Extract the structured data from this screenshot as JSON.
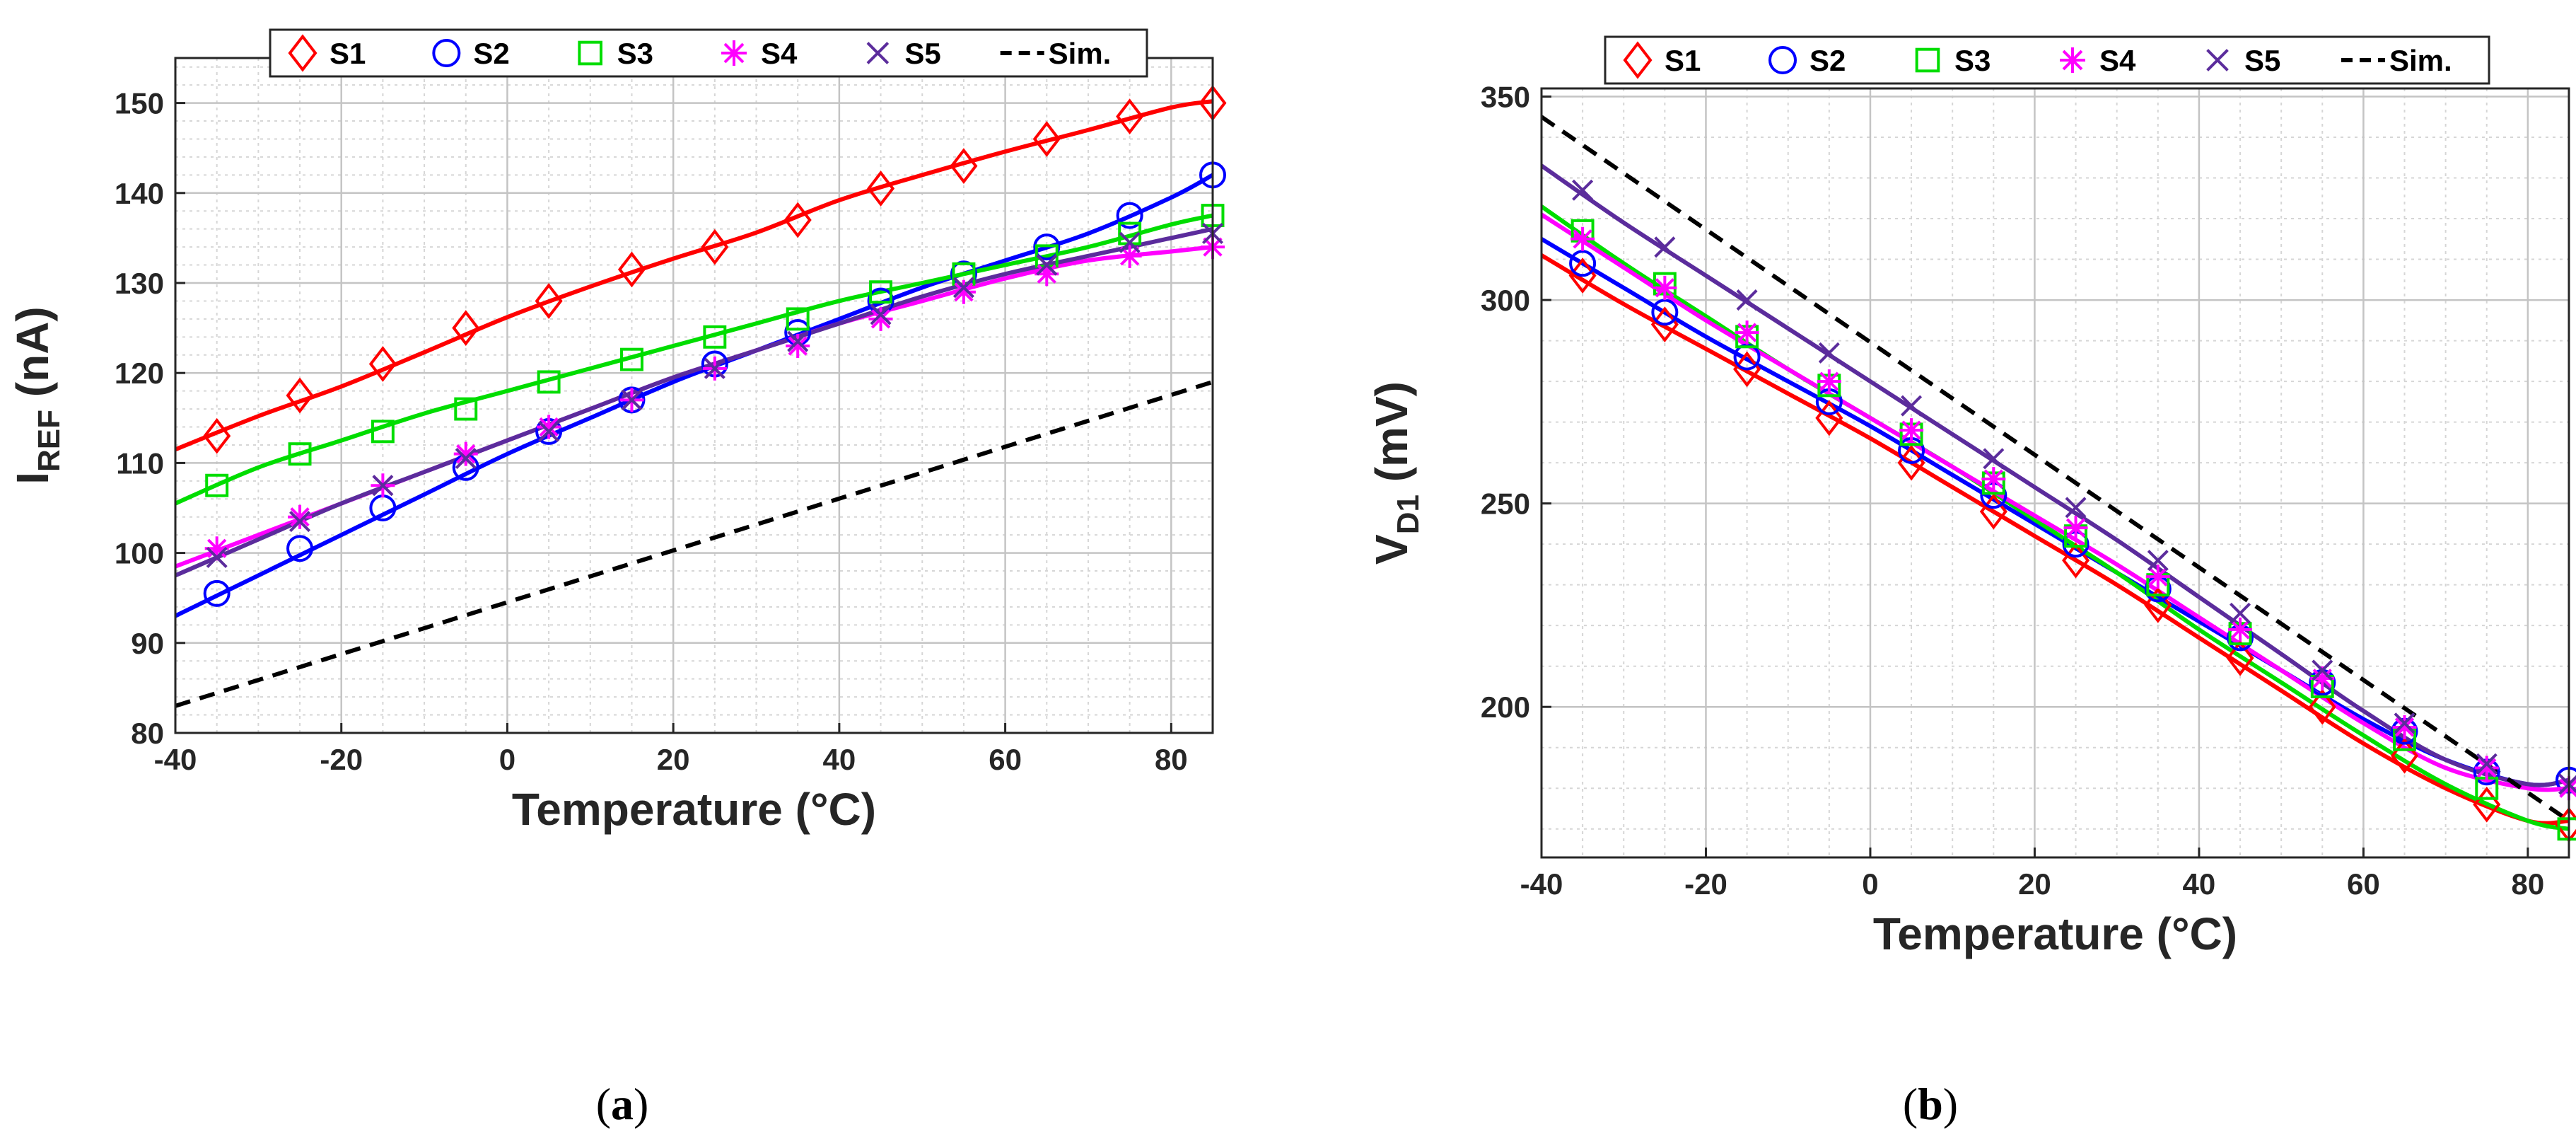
{
  "figure": {
    "caption_a": "a",
    "caption_b": "b"
  },
  "legend": {
    "s1": "S1",
    "s2": "S2",
    "s3": "S3",
    "s4": "S4",
    "s5": "S5",
    "sim": "Sim."
  },
  "colors": {
    "S1": "#ff0000",
    "S2": "#0000ff",
    "S3": "#00dd00",
    "S4": "#ff00ff",
    "S5": "#5b2c9c",
    "Sim.": "#000000"
  },
  "chart_data": [
    {
      "id": "a",
      "type": "line",
      "xlabel": "Temperature (°C)",
      "ylabel_main": "I",
      "ylabel_sub": "REF",
      "ylabel_unit": " (nA)",
      "xlim": [
        -40,
        85
      ],
      "ylim": [
        80,
        155
      ],
      "xticks": [
        -40,
        -20,
        0,
        20,
        40,
        60,
        80
      ],
      "yticks": [
        80,
        90,
        100,
        110,
        120,
        130,
        140,
        150
      ],
      "grid": true,
      "legend_position": "top",
      "marker_x": [
        -35,
        -25,
        -15,
        -5,
        5,
        15,
        25,
        35,
        45,
        55,
        65,
        75,
        85
      ],
      "series": [
        {
          "name": "S1",
          "marker": "diamond",
          "line_x": [
            -40,
            -30,
            -20,
            -10,
            0,
            10,
            20,
            30,
            40,
            50,
            60,
            70,
            80,
            85
          ],
          "line_y": [
            111.5,
            115.2,
            118.5,
            122.3,
            126.2,
            129.6,
            132.7,
            135.6,
            139.2,
            142.0,
            144.6,
            147.0,
            149.5,
            150.2
          ],
          "marker_y": [
            113,
            117.5,
            121,
            125,
            128,
            131.5,
            134,
            137,
            140.5,
            143,
            146,
            148.5,
            150
          ]
        },
        {
          "name": "S2",
          "marker": "circle",
          "line_x": [
            -40,
            -30,
            -20,
            -10,
            0,
            10,
            20,
            30,
            40,
            50,
            60,
            70,
            80,
            85
          ],
          "line_y": [
            93,
            97.5,
            102,
            106.5,
            111,
            115,
            119,
            122.5,
            126,
            129.5,
            132.5,
            135.5,
            139.5,
            142
          ],
          "marker_y": [
            95.5,
            100.5,
            105,
            109.5,
            113.5,
            117,
            121,
            124.5,
            128,
            131,
            134,
            137.5,
            142
          ]
        },
        {
          "name": "S3",
          "marker": "square",
          "line_x": [
            -40,
            -30,
            -20,
            -10,
            0,
            10,
            20,
            30,
            40,
            50,
            60,
            70,
            80,
            85
          ],
          "line_y": [
            105.5,
            109.5,
            112.5,
            115.5,
            118,
            120.5,
            123,
            125.5,
            128,
            130,
            132,
            134,
            136.5,
            137.5
          ],
          "marker_y": [
            107.5,
            111,
            113.5,
            116,
            119,
            121.5,
            124,
            126,
            129,
            131,
            133,
            135.5,
            137.5
          ]
        },
        {
          "name": "S4",
          "marker": "asterisk",
          "line_x": [
            -40,
            -30,
            -20,
            -10,
            0,
            10,
            20,
            30,
            40,
            50,
            60,
            70,
            80,
            85
          ],
          "line_y": [
            98.5,
            102,
            105.5,
            109,
            112.5,
            116,
            119.5,
            122.5,
            125.5,
            128,
            130.5,
            132.5,
            133.5,
            134
          ],
          "marker_y": [
            100.5,
            104,
            107.5,
            111,
            114,
            117,
            120.5,
            123,
            126,
            129,
            131,
            133,
            134
          ]
        },
        {
          "name": "S5",
          "marker": "cross",
          "line_x": [
            -40,
            -30,
            -20,
            -10,
            0,
            10,
            20,
            30,
            40,
            50,
            60,
            70,
            80,
            85
          ],
          "line_y": [
            97.5,
            101.5,
            105.5,
            109,
            112.5,
            116,
            119.5,
            122.5,
            125.5,
            128.5,
            131,
            133,
            135,
            136
          ],
          "marker_y": [
            99.5,
            103.5,
            107.5,
            110.5,
            113.5,
            117,
            120.5,
            123.5,
            126.5,
            129.5,
            132,
            134.5,
            135.5
          ]
        },
        {
          "name": "Sim.",
          "marker": "none",
          "dashed": true,
          "line_x": [
            -40,
            85
          ],
          "line_y": [
            83,
            119
          ]
        }
      ]
    },
    {
      "id": "b",
      "type": "line",
      "xlabel": "Temperature (°C)",
      "ylabel_main": "V",
      "ylabel_sub": "D1",
      "ylabel_unit": " (mV)",
      "xlim": [
        -40,
        85
      ],
      "ylim": [
        163,
        352
      ],
      "xticks": [
        -40,
        -20,
        0,
        20,
        40,
        60,
        80
      ],
      "yticks": [
        200,
        250,
        300,
        350
      ],
      "grid": true,
      "legend_position": "top",
      "marker_x": [
        -35,
        -25,
        -15,
        -5,
        5,
        15,
        25,
        35,
        45,
        55,
        65,
        75,
        85
      ],
      "series": [
        {
          "name": "S1",
          "marker": "diamond",
          "line_x": [
            -40,
            -30,
            -20,
            -10,
            0,
            10,
            20,
            30,
            40,
            50,
            60,
            70,
            80,
            85
          ],
          "line_y": [
            311,
            299,
            288,
            277,
            266,
            254,
            242,
            230,
            217,
            204,
            191,
            180,
            172,
            172
          ],
          "marker_y": [
            306,
            294,
            283,
            271,
            260,
            248,
            236,
            225,
            212,
            200,
            188,
            176,
            171
          ]
        },
        {
          "name": "S2",
          "marker": "circle",
          "line_x": [
            -40,
            -30,
            -20,
            -10,
            0,
            10,
            20,
            30,
            40,
            50,
            60,
            70,
            80,
            85
          ],
          "line_y": [
            315,
            303,
            291,
            280,
            269,
            257,
            245,
            233,
            221,
            209,
            197,
            187,
            181,
            182
          ],
          "marker_y": [
            309,
            297,
            286,
            275,
            263,
            252,
            240,
            229,
            217,
            206,
            194,
            184,
            182
          ]
        },
        {
          "name": "S3",
          "marker": "square",
          "line_x": [
            -40,
            -30,
            -20,
            -10,
            0,
            10,
            20,
            30,
            40,
            50,
            60,
            70,
            80,
            85
          ],
          "line_y": [
            323,
            309,
            296,
            283,
            271,
            259,
            246,
            233,
            219,
            206,
            193,
            181,
            172,
            170
          ],
          "marker_y": [
            317,
            304,
            291,
            279,
            267,
            255,
            242,
            230,
            218,
            205,
            192,
            180,
            170
          ]
        },
        {
          "name": "S4",
          "marker": "asterisk",
          "line_x": [
            -40,
            -30,
            -20,
            -10,
            0,
            10,
            20,
            30,
            40,
            50,
            60,
            70,
            80,
            85
          ],
          "line_y": [
            321,
            308,
            295,
            283,
            271,
            259,
            247,
            235,
            222,
            209,
            196,
            185,
            180,
            180
          ],
          "marker_y": [
            315,
            303,
            292,
            280,
            268,
            256,
            244,
            232,
            219,
            207,
            195,
            185,
            180
          ]
        },
        {
          "name": "S5",
          "marker": "cross",
          "line_x": [
            -40,
            -30,
            -20,
            -10,
            0,
            10,
            20,
            30,
            40,
            50,
            60,
            70,
            80,
            85
          ],
          "line_y": [
            333,
            319,
            306,
            293,
            280,
            267,
            254,
            241,
            227,
            213,
            199,
            187,
            181,
            182
          ],
          "marker_y": [
            327,
            313,
            300,
            287,
            274,
            261,
            249,
            236,
            223,
            209,
            196,
            186,
            181
          ]
        },
        {
          "name": "Sim.",
          "marker": "none",
          "dashed": true,
          "line_x": [
            -40,
            85
          ],
          "line_y": [
            345,
            172
          ]
        }
      ]
    }
  ]
}
